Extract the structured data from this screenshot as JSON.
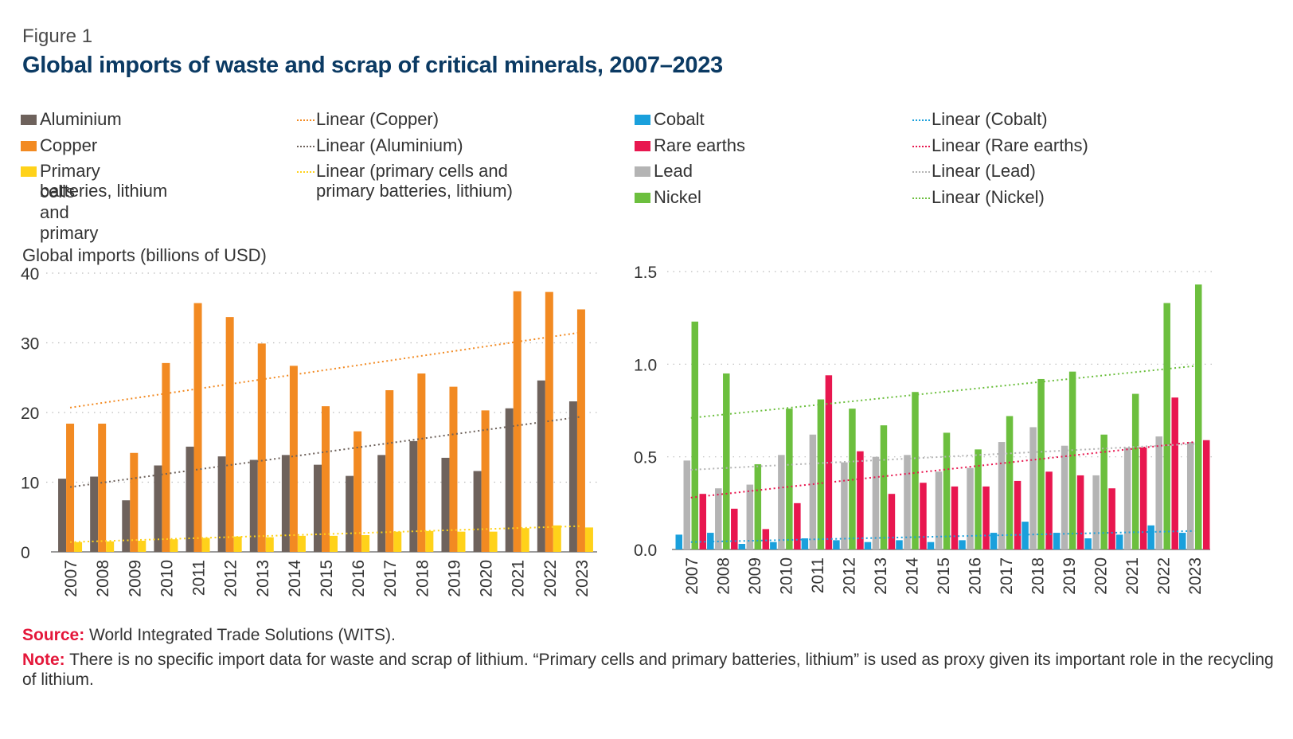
{
  "figure_label": "Figure 1",
  "title": "Global imports of waste and scrap of critical minerals, 2007–2023",
  "y_axis_label": "Global imports (billions of USD)",
  "legend": {
    "aluminium": "Aluminium",
    "copper": "Copper",
    "lithium_line1": "Primary cells and primary",
    "lithium_line2": "batteries, lithium",
    "linear_copper": "Linear (Copper)",
    "linear_aluminium": "Linear (Aluminium)",
    "linear_lithium_line1": "Linear (primary cells and",
    "linear_lithium_line2": "primary batteries, lithium)",
    "cobalt": "Cobalt",
    "rare_earths": "Rare earths",
    "lead": "Lead",
    "nickel": "Nickel",
    "linear_cobalt": "Linear (Cobalt)",
    "linear_rare_earths": "Linear (Rare earths)",
    "linear_lead": "Linear (Lead)",
    "linear_nickel": "Linear (Nickel)"
  },
  "colors": {
    "aluminium": "#6e625c",
    "copper": "#f28a22",
    "lithium": "#ffd21a",
    "cobalt": "#1aa0dc",
    "rare_earths": "#e8174f",
    "lead": "#b4b4b4",
    "nickel": "#6cbf3e",
    "title": "#0b3a63",
    "note_key": "#e4173a"
  },
  "chart_data": [
    {
      "type": "bar",
      "ylim": [
        0,
        40
      ],
      "yticks": [
        "0",
        "10",
        "20",
        "30",
        "40"
      ],
      "ytick_values": [
        0,
        10,
        20,
        30,
        40
      ],
      "categories": [
        "2007",
        "2008",
        "2009",
        "2010",
        "2011",
        "2012",
        "2013",
        "2014",
        "2015",
        "2016",
        "2017",
        "2018",
        "2019",
        "2020",
        "2021",
        "2022",
        "2023"
      ],
      "series": [
        {
          "key": "aluminium",
          "name": "Aluminium",
          "values": [
            10.5,
            10.8,
            7.4,
            12.4,
            15.1,
            13.7,
            13.2,
            13.9,
            12.5,
            10.9,
            13.9,
            15.9,
            13.5,
            11.6,
            20.6,
            24.6,
            21.6
          ]
        },
        {
          "key": "copper",
          "name": "Copper",
          "values": [
            18.4,
            18.4,
            14.2,
            27.1,
            35.7,
            33.7,
            29.9,
            26.7,
            20.9,
            17.3,
            23.2,
            25.6,
            23.7,
            20.3,
            37.4,
            37.3,
            34.8
          ]
        },
        {
          "key": "lithium",
          "name": "Primary cells and primary batteries, lithium",
          "values": [
            1.4,
            1.5,
            1.6,
            1.8,
            2.0,
            2.2,
            2.1,
            2.3,
            2.3,
            2.4,
            2.9,
            3.0,
            2.9,
            2.9,
            3.4,
            3.8,
            3.5
          ]
        }
      ],
      "trendlines": [
        {
          "key": "copper",
          "name": "Linear (Copper)",
          "start": 20.7,
          "end": 31.5
        },
        {
          "key": "aluminium",
          "name": "Linear (Aluminium)",
          "start": 9.3,
          "end": 19.4
        },
        {
          "key": "lithium",
          "name": "Linear (primary cells and primary batteries, lithium)",
          "start": 1.4,
          "end": 3.7
        }
      ]
    },
    {
      "type": "bar",
      "ylim": [
        0,
        1.5
      ],
      "yticks": [
        "0.0",
        "0.5",
        "1.0",
        "1.5"
      ],
      "ytick_values": [
        0,
        0.5,
        1.0,
        1.5
      ],
      "categories": [
        "2007",
        "2008",
        "2009",
        "2010",
        "2011",
        "2012",
        "2013",
        "2014",
        "2015",
        "2016",
        "2017",
        "2018",
        "2019",
        "2020",
        "2021",
        "2022",
        "2023"
      ],
      "series": [
        {
          "key": "cobalt",
          "name": "Cobalt",
          "values": [
            0.08,
            0.09,
            0.03,
            0.04,
            0.06,
            0.05,
            0.04,
            0.05,
            0.04,
            0.05,
            0.09,
            0.15,
            0.09,
            0.06,
            0.08,
            0.13,
            0.09
          ]
        },
        {
          "key": "lead",
          "name": "Lead",
          "values": [
            0.48,
            0.33,
            0.35,
            0.51,
            0.62,
            0.47,
            0.5,
            0.51,
            0.42,
            0.44,
            0.58,
            0.66,
            0.56,
            0.4,
            0.55,
            0.61,
            0.58
          ]
        },
        {
          "key": "nickel",
          "name": "Nickel",
          "values": [
            1.23,
            0.95,
            0.46,
            0.76,
            0.81,
            0.76,
            0.67,
            0.85,
            0.63,
            0.54,
            0.72,
            0.92,
            0.96,
            0.62,
            0.84,
            1.33,
            1.43
          ]
        },
        {
          "key": "rare_earths",
          "name": "Rare earths",
          "values": [
            0.3,
            0.22,
            0.11,
            0.25,
            0.94,
            0.53,
            0.3,
            0.36,
            0.34,
            0.34,
            0.37,
            0.42,
            0.4,
            0.33,
            0.55,
            0.82,
            0.59
          ]
        }
      ],
      "trendlines": [
        {
          "key": "cobalt",
          "name": "Linear (Cobalt)",
          "start": 0.04,
          "end": 0.1
        },
        {
          "key": "rare_earths",
          "name": "Linear (Rare earths)",
          "start": 0.28,
          "end": 0.58
        },
        {
          "key": "lead",
          "name": "Linear (Lead)",
          "start": 0.43,
          "end": 0.57
        },
        {
          "key": "nickel",
          "name": "Linear (Nickel)",
          "start": 0.71,
          "end": 0.99
        }
      ]
    }
  ],
  "footer": {
    "source_key": "Source:",
    "source_text": " World Integrated Trade Solutions (WITS).",
    "note_key": "Note:",
    "note_text_line1": " There is no specific import data for waste and scrap of lithium. “Primary cells and primary batteries, lithium” is used as proxy given its important role in the recycling",
    "note_text_line2": "of lithium."
  }
}
